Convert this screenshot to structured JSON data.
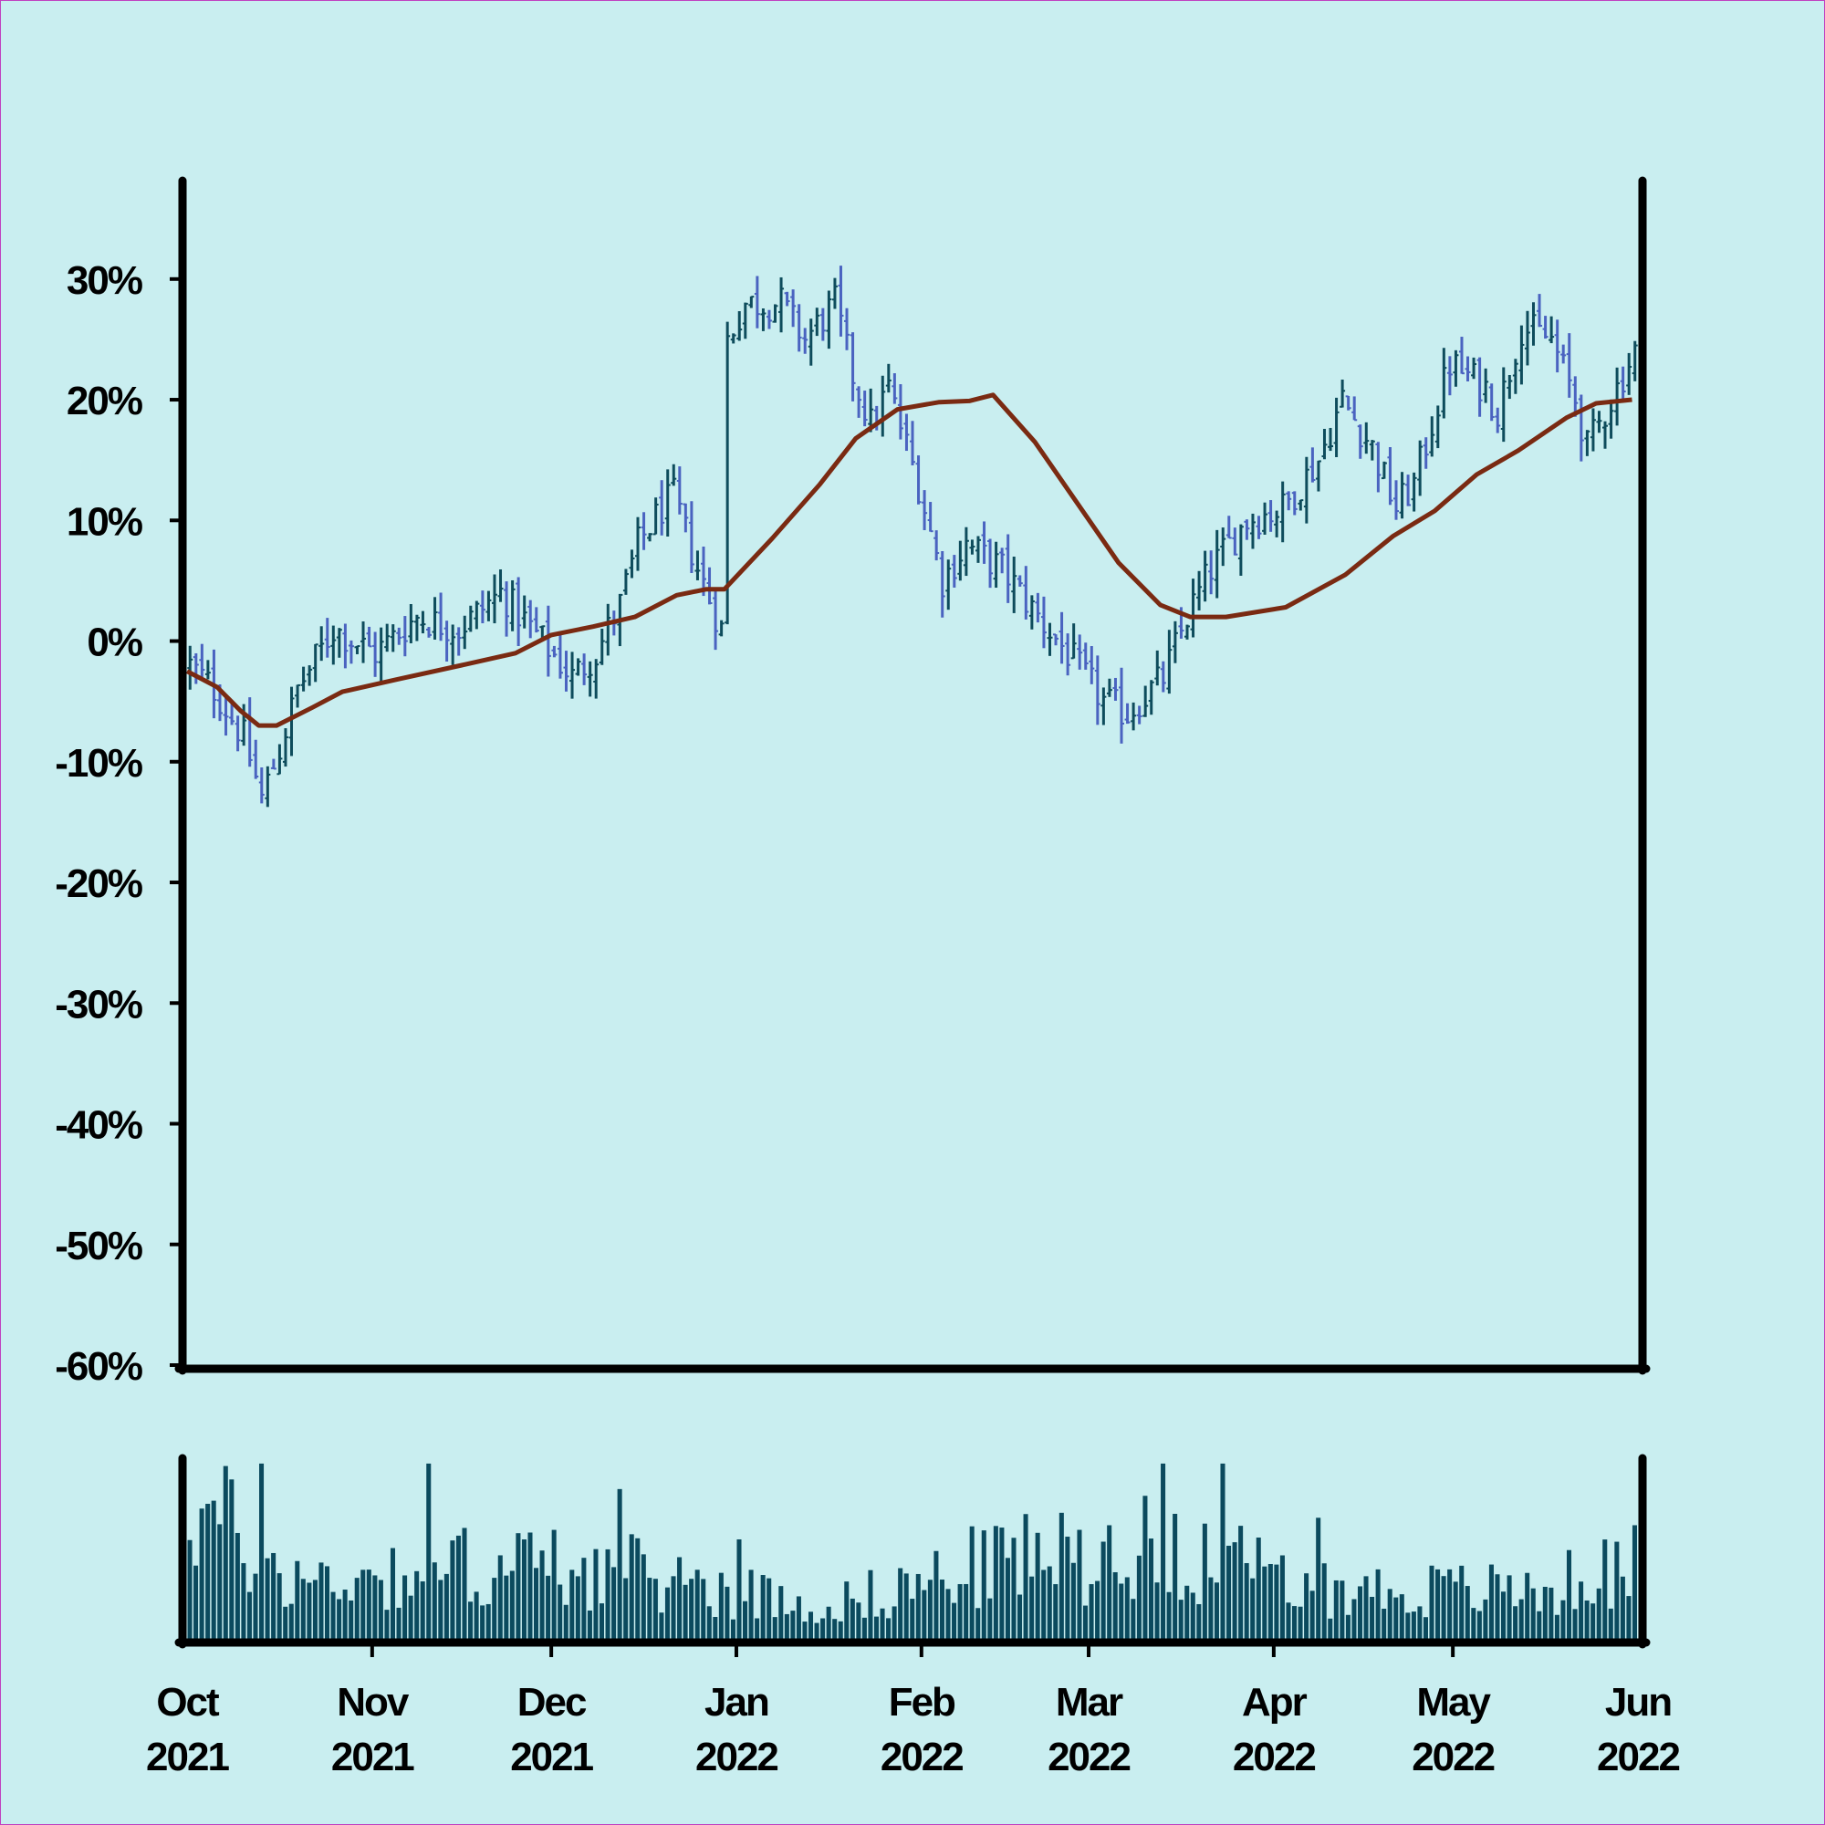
{
  "colors": {
    "background": "#c9eef0",
    "bar_up": "#0e4c5c",
    "bar_down": "#4a63c0",
    "moving_average": "#7a2a12",
    "volume": "#0b4a5e",
    "axis": "#000000"
  },
  "chart_data": [
    {
      "type": "line",
      "subtype": "ohlc_percent_change_with_moving_average",
      "title": "",
      "xlabel": "",
      "ylabel": "",
      "ylim": [
        -60,
        38
      ],
      "y_unit": "%",
      "y_ticks": [
        30,
        20,
        10,
        0,
        -10,
        -20,
        -30,
        -40,
        -50,
        -60
      ],
      "y_tick_labels": [
        "30%",
        "20%",
        "10%",
        "0%",
        "-10%",
        "-20%",
        "-30%",
        "-40%",
        "-50%",
        "-60%"
      ],
      "x_range": [
        "2021-10-01",
        "2022-06-01"
      ],
      "x_ticks": [
        "2021-10-01",
        "2021-11-01",
        "2021-12-01",
        "2022-01-01",
        "2022-02-01",
        "2022-03-01",
        "2022-04-01",
        "2022-05-01",
        "2022-06-01"
      ],
      "x_tick_labels": [
        {
          "month": "Oct",
          "year": "2021"
        },
        {
          "month": "Nov",
          "year": "2021"
        },
        {
          "month": "Dec",
          "year": "2021"
        },
        {
          "month": "Jan",
          "year": "2022"
        },
        {
          "month": "Feb",
          "year": "2022"
        },
        {
          "month": "Mar",
          "year": "2022"
        },
        {
          "month": "Apr",
          "year": "2022"
        },
        {
          "month": "May",
          "year": "2022"
        },
        {
          "month": "Jun",
          "year": "2022"
        }
      ],
      "grid": false,
      "price_anchors": [
        {
          "date": "2021-10-01",
          "close": -2
        },
        {
          "date": "2021-10-05",
          "close": -4
        },
        {
          "date": "2021-10-10",
          "close": -8
        },
        {
          "date": "2021-10-13",
          "close": -13
        },
        {
          "date": "2021-10-16",
          "close": -9
        },
        {
          "date": "2021-10-19",
          "close": -4
        },
        {
          "date": "2021-10-25",
          "close": 1
        },
        {
          "date": "2021-11-01",
          "close": -1
        },
        {
          "date": "2021-11-08",
          "close": 2
        },
        {
          "date": "2021-11-15",
          "close": 1
        },
        {
          "date": "2021-11-22",
          "close": 4
        },
        {
          "date": "2021-11-29",
          "close": 0
        },
        {
          "date": "2021-12-04",
          "close": -3
        },
        {
          "date": "2021-12-08",
          "close": -1
        },
        {
          "date": "2021-12-12",
          "close": 3
        },
        {
          "date": "2021-12-15",
          "close": 8
        },
        {
          "date": "2021-12-19",
          "close": 11
        },
        {
          "date": "2021-12-21",
          "close": 12
        },
        {
          "date": "2021-12-25",
          "close": 6
        },
        {
          "date": "2021-12-29",
          "close": 1
        },
        {
          "date": "2021-12-30",
          "close": 25
        },
        {
          "date": "2022-01-02",
          "close": 28
        },
        {
          "date": "2022-01-08",
          "close": 28
        },
        {
          "date": "2022-01-12",
          "close": 25
        },
        {
          "date": "2022-01-17",
          "close": 28
        },
        {
          "date": "2022-01-20",
          "close": 22
        },
        {
          "date": "2022-01-23",
          "close": 18
        },
        {
          "date": "2022-01-26",
          "close": 21
        },
        {
          "date": "2022-01-31",
          "close": 13
        },
        {
          "date": "2022-02-04",
          "close": 5
        },
        {
          "date": "2022-02-08",
          "close": 8
        },
        {
          "date": "2022-02-14",
          "close": 6
        },
        {
          "date": "2022-02-20",
          "close": 2
        },
        {
          "date": "2022-02-25",
          "close": -1
        },
        {
          "date": "2022-03-03",
          "close": -5
        },
        {
          "date": "2022-03-07",
          "close": -6
        },
        {
          "date": "2022-03-13",
          "close": -3
        },
        {
          "date": "2022-03-17",
          "close": 2
        },
        {
          "date": "2022-03-21",
          "close": 6
        },
        {
          "date": "2022-03-27",
          "close": 10
        },
        {
          "date": "2022-04-02",
          "close": 11
        },
        {
          "date": "2022-04-08",
          "close": 15
        },
        {
          "date": "2022-04-12",
          "close": 20
        },
        {
          "date": "2022-04-17",
          "close": 16
        },
        {
          "date": "2022-04-21",
          "close": 11
        },
        {
          "date": "2022-04-24",
          "close": 13
        },
        {
          "date": "2022-04-30",
          "close": 23
        },
        {
          "date": "2022-05-06",
          "close": 21
        },
        {
          "date": "2022-05-08",
          "close": 19
        },
        {
          "date": "2022-05-12",
          "close": 26
        },
        {
          "date": "2022-05-17",
          "close": 25
        },
        {
          "date": "2022-05-21",
          "close": 20
        },
        {
          "date": "2022-05-23",
          "close": 16
        },
        {
          "date": "2022-05-27",
          "close": 20
        },
        {
          "date": "2022-05-31",
          "close": 24
        }
      ],
      "moving_average": [
        {
          "date": "2021-10-01",
          "value": -2.5
        },
        {
          "date": "2021-10-06",
          "value": -3.8
        },
        {
          "date": "2021-10-10",
          "value": -5.8
        },
        {
          "date": "2021-10-13",
          "value": -7.0
        },
        {
          "date": "2021-10-16",
          "value": -7.0
        },
        {
          "date": "2021-10-22",
          "value": -5.5
        },
        {
          "date": "2021-10-27",
          "value": -4.2
        },
        {
          "date": "2021-11-05",
          "value": -3.2
        },
        {
          "date": "2021-11-16",
          "value": -2.0
        },
        {
          "date": "2021-11-25",
          "value": -1.0
        },
        {
          "date": "2021-12-01",
          "value": 0.5
        },
        {
          "date": "2021-12-08",
          "value": 1.2
        },
        {
          "date": "2021-12-15",
          "value": 2.0
        },
        {
          "date": "2021-12-22",
          "value": 3.8
        },
        {
          "date": "2021-12-27",
          "value": 4.3
        },
        {
          "date": "2021-12-30",
          "value": 4.3
        },
        {
          "date": "2022-01-07",
          "value": 8.5
        },
        {
          "date": "2022-01-15",
          "value": 13.0
        },
        {
          "date": "2022-01-21",
          "value": 16.8
        },
        {
          "date": "2022-01-28",
          "value": 19.2
        },
        {
          "date": "2022-02-04",
          "value": 19.8
        },
        {
          "date": "2022-02-09",
          "value": 19.9
        },
        {
          "date": "2022-02-13",
          "value": 20.4
        },
        {
          "date": "2022-02-20",
          "value": 16.5
        },
        {
          "date": "2022-02-27",
          "value": 11.5
        },
        {
          "date": "2022-03-06",
          "value": 6.5
        },
        {
          "date": "2022-03-13",
          "value": 3.0
        },
        {
          "date": "2022-03-18",
          "value": 2.0
        },
        {
          "date": "2022-03-24",
          "value": 2.0
        },
        {
          "date": "2022-04-03",
          "value": 2.8
        },
        {
          "date": "2022-04-13",
          "value": 5.5
        },
        {
          "date": "2022-04-21",
          "value": 8.7
        },
        {
          "date": "2022-04-28",
          "value": 10.8
        },
        {
          "date": "2022-05-05",
          "value": 13.8
        },
        {
          "date": "2022-05-12",
          "value": 15.8
        },
        {
          "date": "2022-05-20",
          "value": 18.5
        },
        {
          "date": "2022-05-25",
          "value": 19.7
        },
        {
          "date": "2022-05-31",
          "value": 20.0
        }
      ]
    },
    {
      "type": "bar",
      "subtype": "volume",
      "x_range": [
        "2021-10-01",
        "2022-06-01"
      ],
      "note_axis": "no y tick labels",
      "volume_anchors": [
        {
          "date": "2021-10-01",
          "value": 0.85
        },
        {
          "date": "2021-10-10",
          "value": 0.6
        },
        {
          "date": "2021-10-20",
          "value": 0.35
        },
        {
          "date": "2021-11-01",
          "value": 0.4
        },
        {
          "date": "2021-11-15",
          "value": 0.45
        },
        {
          "date": "2021-12-01",
          "value": 0.45
        },
        {
          "date": "2021-12-15",
          "value": 0.4
        },
        {
          "date": "2022-01-01",
          "value": 0.3
        },
        {
          "date": "2022-01-15",
          "value": 0.2
        },
        {
          "date": "2022-02-01",
          "value": 0.35
        },
        {
          "date": "2022-02-15",
          "value": 0.5
        },
        {
          "date": "2022-03-01",
          "value": 0.5
        },
        {
          "date": "2022-03-15",
          "value": 0.6
        },
        {
          "date": "2022-04-01",
          "value": 0.35
        },
        {
          "date": "2022-04-15",
          "value": 0.3
        },
        {
          "date": "2022-05-01",
          "value": 0.3
        },
        {
          "date": "2022-05-15",
          "value": 0.3
        },
        {
          "date": "2022-05-31",
          "value": 0.45
        }
      ],
      "ylim": [
        0,
        1
      ]
    }
  ]
}
